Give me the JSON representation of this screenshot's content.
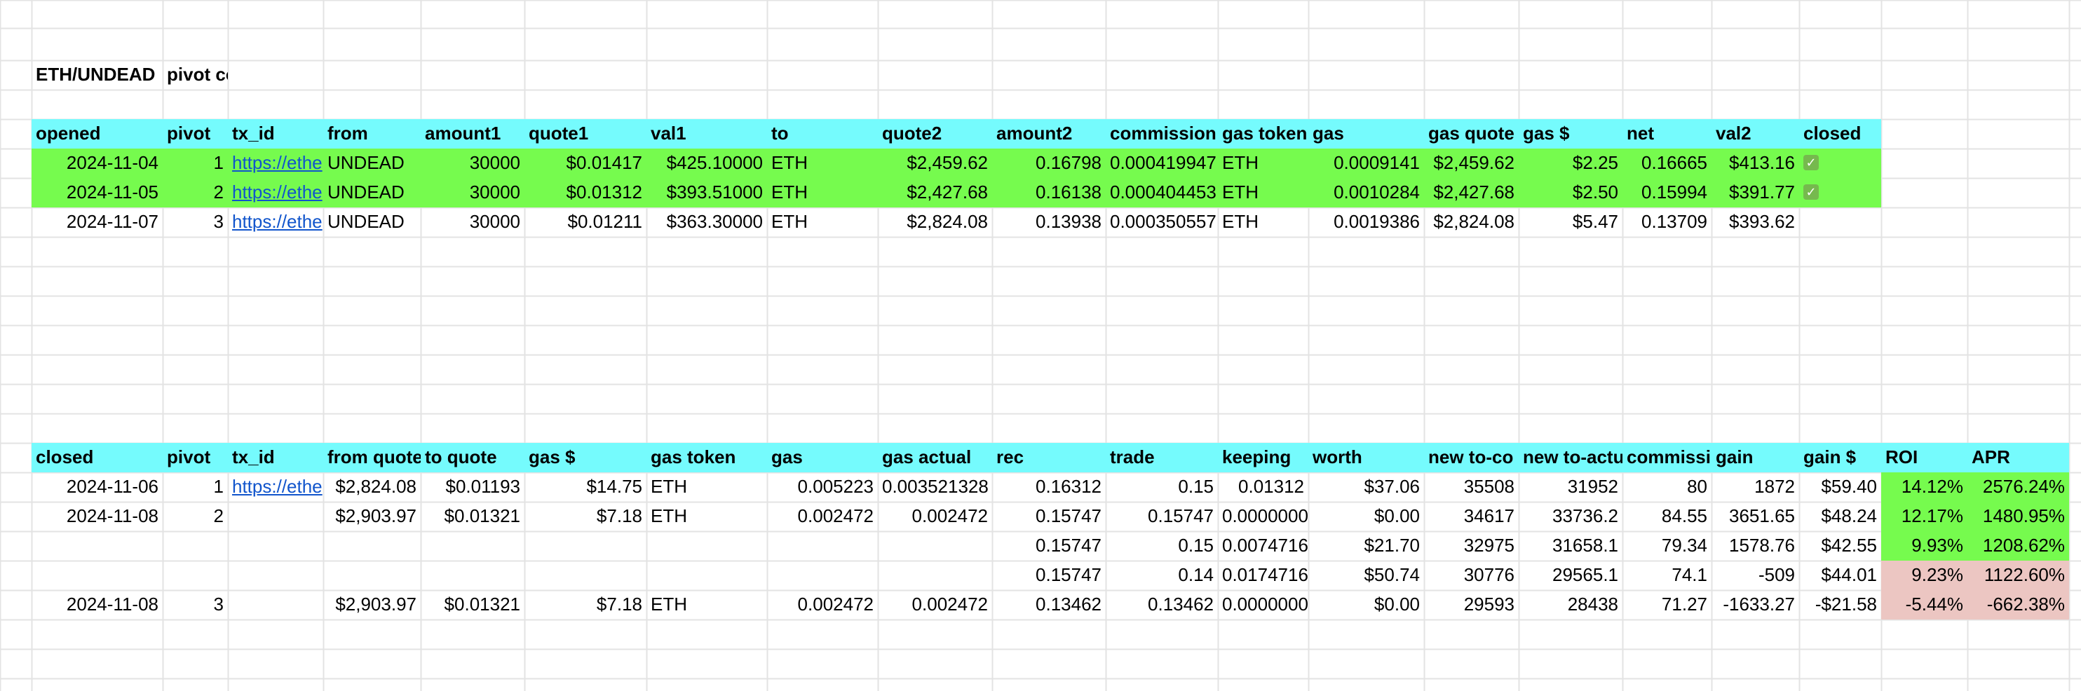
{
  "sheet": {
    "title_cells": [
      "ETH/UNDEAD",
      "pivot computer"
    ],
    "opened_table": {
      "headers": [
        "opened",
        "pivot",
        "tx_id",
        "from",
        "amount1",
        "quote1",
        "val1",
        "to",
        "quote2",
        "amount2",
        "commission",
        "gas token",
        "gas",
        "gas quote",
        "gas $",
        "net",
        "val2",
        "closed"
      ],
      "rows": [
        {
          "cells": [
            "2024-11-04",
            "1",
            "https://ethe",
            "UNDEAD",
            "30000",
            "$0.01417",
            "$425.10000",
            "ETH",
            "$2,459.62",
            "0.16798",
            "0.000419947",
            "ETH",
            "0.0009141",
            "$2,459.62",
            "$2.25",
            "0.16665",
            "$413.16",
            "✓"
          ],
          "highlight": "green"
        },
        {
          "cells": [
            "2024-11-05",
            "2",
            "https://ethe",
            "UNDEAD",
            "30000",
            "$0.01312",
            "$393.51000",
            "ETH",
            "$2,427.68",
            "0.16138",
            "0.000404453",
            "ETH",
            "0.0010284",
            "$2,427.68",
            "$2.50",
            "0.15994",
            "$391.77",
            "✓"
          ],
          "highlight": "green"
        },
        {
          "cells": [
            "2024-11-07",
            "3",
            "https://ethe",
            "UNDEAD",
            "30000",
            "$0.01211",
            "$363.30000",
            "ETH",
            "$2,824.08",
            "0.13938",
            "0.000350557",
            "ETH",
            "0.0019386",
            "$2,824.08",
            "$5.47",
            "0.13709",
            "$393.62",
            ""
          ],
          "highlight": "none"
        }
      ]
    },
    "closed_table": {
      "headers": [
        "closed",
        "pivot",
        "tx_id",
        "from quote",
        "to quote",
        "gas $",
        "gas token",
        "gas",
        "gas actual",
        "rec",
        "trade",
        "keeping",
        "worth",
        "new to-co",
        "new to-actu",
        "commissi",
        "gain",
        "gain $",
        "ROI",
        "APR"
      ],
      "rows": [
        {
          "cells": [
            "2024-11-06",
            "1",
            "https://ethe",
            "$2,824.08",
            "$0.01193",
            "$14.75",
            "ETH",
            "0.005223",
            "0.003521328",
            "0.16312",
            "0.15",
            "0.01312",
            "$37.06",
            "35508",
            "31952",
            "80",
            "1872",
            "$59.40",
            "14.12%",
            "2576.24%"
          ],
          "status": "positive"
        },
        {
          "cells": [
            "2024-11-08",
            "2",
            "",
            "$2,903.97",
            "$0.01321",
            "$7.18",
            "ETH",
            "0.002472",
            "0.002472",
            "0.15747",
            "0.15747",
            "0.0000000",
            "$0.00",
            "34617",
            "33736.2",
            "84.55",
            "3651.65",
            "$48.24",
            "12.17%",
            "1480.95%"
          ],
          "status": "positive"
        },
        {
          "cells": [
            "",
            "",
            "",
            "",
            "",
            "",
            "",
            "",
            "",
            "0.15747",
            "0.15",
            "0.0074716",
            "$21.70",
            "32975",
            "31658.1",
            "79.34",
            "1578.76",
            "$42.55",
            "9.93%",
            "1208.62%"
          ],
          "status": "positive"
        },
        {
          "cells": [
            "",
            "",
            "",
            "",
            "",
            "",
            "",
            "",
            "",
            "0.15747",
            "0.14",
            "0.0174716",
            "$50.74",
            "30776",
            "29565.1",
            "74.1",
            "-509",
            "$44.01",
            "9.23%",
            "1122.60%"
          ],
          "status": "negative"
        },
        {
          "cells": [
            "2024-11-08",
            "3",
            "",
            "$2,903.97",
            "$0.01321",
            "$7.18",
            "ETH",
            "0.002472",
            "0.002472",
            "0.13462",
            "0.13462",
            "0.0000000",
            "$0.00",
            "29593",
            "28438",
            "71.27",
            "-1633.27",
            "-$21.58",
            "-5.44%",
            "-662.38%"
          ],
          "status": "negative"
        }
      ]
    },
    "colors": {
      "header": "#75fbfd",
      "green": "#76fb4e",
      "negative": "#ecc6c2",
      "link": "#1155cc",
      "gridline": "#e3e3e3"
    }
  }
}
